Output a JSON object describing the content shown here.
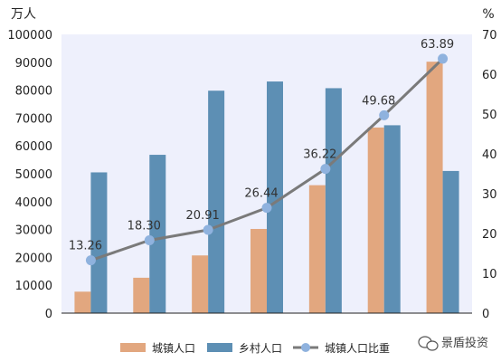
{
  "chart_data": {
    "type": "bar",
    "categories": [
      "",
      "",
      "",
      "",
      "",
      "",
      ""
    ],
    "series": [
      {
        "name": "城镇人口",
        "type": "bar",
        "axis": "left",
        "color": "#E2A77F",
        "values": [
          7700,
          12700,
          20700,
          30200,
          45900,
          66600,
          90200
        ]
      },
      {
        "name": "乡村人口",
        "type": "bar",
        "axis": "left",
        "color": "#5D8FB4",
        "values": [
          50500,
          56800,
          79800,
          83100,
          80700,
          67400,
          51000
        ]
      },
      {
        "name": "城镇人口比重",
        "type": "line",
        "axis": "right",
        "color": "#7A7A7A",
        "marker_color": "#8FB2DE",
        "values": [
          13.26,
          18.3,
          20.91,
          26.44,
          36.22,
          49.68,
          63.89
        ]
      }
    ],
    "data_labels": [
      "13.26",
      "18.30",
      "20.91",
      "26.44",
      "36.22",
      "49.68",
      "63.89"
    ],
    "left_axis": {
      "unit": "万人",
      "ylim": [
        0,
        100000
      ],
      "ticks": [
        "0",
        "10000",
        "20000",
        "30000",
        "40000",
        "50000",
        "60000",
        "70000",
        "80000",
        "90000",
        "100000"
      ]
    },
    "right_axis": {
      "unit": "%",
      "ylim": [
        0,
        70
      ],
      "ticks": [
        "0",
        "10",
        "20",
        "30",
        "40",
        "50",
        "60",
        "70"
      ]
    },
    "plot_background": "#EEF0FC",
    "legend_position": "bottom",
    "grid": false
  },
  "watermark": {
    "text": "景盾投资",
    "icon": "wechat-icon"
  }
}
